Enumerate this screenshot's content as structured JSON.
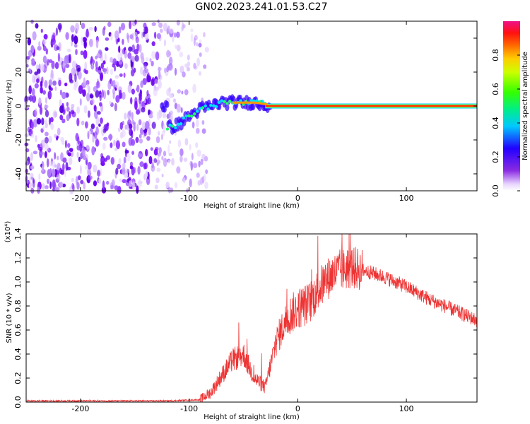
{
  "page_title": "GN02.2023.241.01.53.C27",
  "chart_data": [
    {
      "type": "heatmap",
      "title": "GN02.2023.241.01.53.C27",
      "xlabel": "Height of straight line (km)",
      "ylabel": "Frequency (Hz)",
      "xlim": [
        -250,
        165
      ],
      "ylim": [
        -50,
        50
      ],
      "xticks": [
        -200,
        -100,
        0,
        100
      ],
      "yticks": [
        -40,
        -20,
        0,
        20,
        40
      ],
      "colorbar": {
        "label": "Normalized spectral amplitude",
        "range": [
          0.0,
          1.0
        ],
        "ticks": [
          "0.0",
          "0.2",
          "0.4",
          "0.6",
          "0.8"
        ],
        "colormap": "rainbow (purple to magenta)"
      },
      "noise_region_x": [
        -250,
        -90
      ],
      "signal_track": [
        {
          "x": -120,
          "y": -13
        },
        {
          "x": -110,
          "y": -11
        },
        {
          "x": -100,
          "y": -6
        },
        {
          "x": -90,
          "y": -2
        },
        {
          "x": -80,
          "y": 0
        },
        {
          "x": -70,
          "y": 2
        },
        {
          "x": -60,
          "y": 2
        },
        {
          "x": -50,
          "y": 2
        },
        {
          "x": -40,
          "y": 2
        },
        {
          "x": -30,
          "y": 1
        },
        {
          "x": -20,
          "y": 0
        },
        {
          "x": 0,
          "y": 0
        },
        {
          "x": 165,
          "y": 0
        }
      ]
    },
    {
      "type": "line",
      "xlabel": "Height of straight line (km)",
      "ylabel": "SNR (10 * v/v)",
      "y_scale_label": "(x10⁴)",
      "xlim": [
        -250,
        165
      ],
      "ylim": [
        0.0,
        1.4
      ],
      "xticks": [
        -200,
        -100,
        0,
        100
      ],
      "yticks": [
        "0.0",
        "0.2",
        "0.4",
        "0.6",
        "0.8",
        "1.0",
        "1.2",
        "1.4"
      ],
      "series_color": "#ee3333",
      "envelope": {
        "x": [
          -250,
          -120,
          -90,
          -80,
          -70,
          -60,
          -50,
          -40,
          -30,
          -20,
          -10,
          0,
          10,
          20,
          30,
          40,
          50,
          60,
          70,
          80,
          100,
          120,
          140,
          165
        ],
        "y": [
          0.01,
          0.01,
          0.02,
          0.08,
          0.22,
          0.35,
          0.4,
          0.2,
          0.12,
          0.5,
          0.7,
          0.78,
          0.82,
          0.95,
          1.05,
          1.1,
          1.12,
          1.1,
          1.07,
          1.04,
          0.96,
          0.86,
          0.78,
          0.68
        ]
      }
    }
  ]
}
